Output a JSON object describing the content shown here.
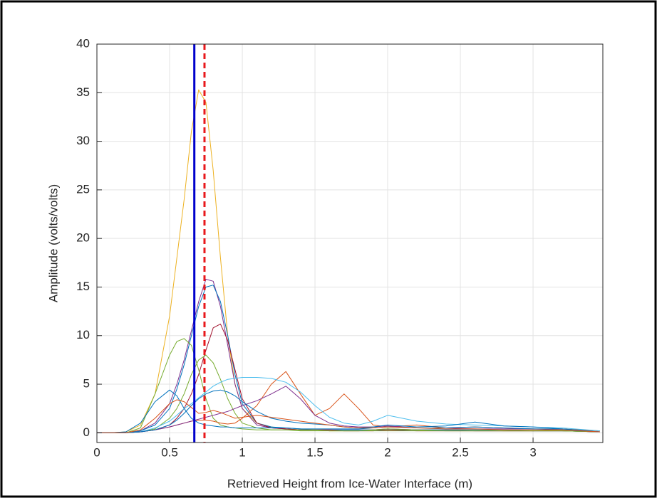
{
  "chart_data": {
    "type": "line",
    "xlabel": "Retrieved Height from Ice-Water Interface (m)",
    "ylabel": "Amplitude (volts/volts)",
    "xlim": [
      0,
      3.48
    ],
    "ylim": [
      -1,
      40
    ],
    "xticks": [
      0,
      0.5,
      1,
      1.5,
      2,
      2.5,
      3
    ],
    "yticks": [
      0,
      5,
      10,
      15,
      20,
      25,
      30,
      35,
      40
    ],
    "grid": true,
    "x": [
      0,
      0.1,
      0.2,
      0.3,
      0.4,
      0.5,
      0.55,
      0.6,
      0.65,
      0.7,
      0.75,
      0.8,
      0.85,
      0.9,
      0.95,
      1.0,
      1.1,
      1.2,
      1.3,
      1.4,
      1.5,
      1.6,
      1.7,
      1.8,
      1.9,
      2.0,
      2.2,
      2.4,
      2.6,
      2.8,
      3.0,
      3.2,
      3.46
    ],
    "series": [
      {
        "color": "#EDB120",
        "values": [
          0,
          0,
          0.1,
          0.8,
          4,
          12,
          18,
          24,
          31,
          35.3,
          34,
          27,
          18,
          10,
          5,
          2.5,
          1,
          0.6,
          0.4,
          0.3,
          0.3,
          0.2,
          0.2,
          0.2,
          0.3,
          0.4,
          0.3,
          0.3,
          0.3,
          0.2,
          0.2,
          0.3,
          0.1
        ]
      },
      {
        "color": "#7E2F8E",
        "values": [
          0,
          0,
          0,
          0.2,
          1,
          3,
          5,
          7.5,
          10.5,
          13.5,
          15.8,
          15.6,
          13,
          9,
          5,
          2.5,
          0.8,
          0.5,
          0.4,
          0.3,
          0.3,
          0.3,
          0.3,
          0.3,
          0.3,
          0.4,
          0.3,
          0.3,
          0.2,
          0.2,
          0.2,
          0.2,
          0.1
        ]
      },
      {
        "color": "#0072BD",
        "values": [
          0,
          0,
          0,
          0.2,
          0.8,
          2.5,
          4.5,
          7,
          10,
          13,
          15,
          15.2,
          13.5,
          10,
          6,
          3,
          1,
          0.6,
          0.5,
          0.4,
          0.3,
          0.3,
          0.3,
          0.3,
          0.3,
          0.3,
          0.3,
          0.3,
          0.3,
          0.3,
          0.2,
          0.2,
          0.1
        ]
      },
      {
        "color": "#A2142F",
        "values": [
          0,
          0,
          0,
          0.1,
          0.3,
          0.8,
          1.5,
          2.5,
          4,
          6,
          8.5,
          10.8,
          11.2,
          9.5,
          6.5,
          3.5,
          1,
          0.5,
          0.4,
          0.3,
          0.3,
          0.3,
          0.2,
          0.2,
          0.2,
          0.3,
          0.2,
          0.2,
          0.2,
          0.2,
          0.2,
          0.2,
          0.1
        ]
      },
      {
        "color": "#77AC30",
        "values": [
          0,
          0,
          0,
          0.5,
          4,
          8,
          9.4,
          9.7,
          9,
          6.5,
          3.5,
          1.5,
          0.8,
          0.6,
          0.5,
          0.4,
          0.3,
          0.3,
          0.3,
          0.3,
          0.3,
          0.2,
          0.2,
          0.2,
          0.3,
          0.4,
          0.3,
          0.2,
          0.2,
          0.2,
          0.2,
          0.2,
          0.1
        ]
      },
      {
        "color": "#77AC30",
        "values": [
          0,
          0,
          0,
          0.1,
          0.4,
          1.5,
          2.5,
          4,
          6,
          7.5,
          8,
          7.2,
          5.5,
          3.5,
          2,
          1,
          0.5,
          0.3,
          0.3,
          0.2,
          0.2,
          0.2,
          0.2,
          0.2,
          0.2,
          0.2,
          0.2,
          0.2,
          0.2,
          0.2,
          0.2,
          0.2,
          0.1
        ]
      },
      {
        "color": "#D95319",
        "values": [
          0,
          0,
          0,
          0.1,
          0.3,
          0.6,
          0.8,
          1,
          1.2,
          1.3,
          1.3,
          1.2,
          1,
          0.9,
          1,
          1.5,
          2.8,
          5,
          6.3,
          4,
          1.8,
          2.5,
          4,
          2.5,
          0.8,
          0.6,
          0.8,
          0.5,
          0.6,
          0.5,
          0.4,
          0.4,
          0.2
        ]
      },
      {
        "color": "#4DBEEE",
        "values": [
          0,
          0,
          0,
          0.1,
          0.5,
          1.2,
          1.8,
          2.5,
          3,
          3.6,
          4.2,
          4.8,
          5.2,
          5.5,
          5.6,
          5.7,
          5.7,
          5.6,
          5.2,
          4.2,
          2.8,
          1.6,
          1,
          0.8,
          1.2,
          1.8,
          1.2,
          0.9,
          0.8,
          0.7,
          0.6,
          0.5,
          0.2
        ]
      },
      {
        "color": "#7E2F8E",
        "values": [
          0,
          0,
          0,
          0.1,
          0.3,
          0.6,
          0.8,
          1,
          1.2,
          1.4,
          1.6,
          1.8,
          2,
          2.2,
          2.5,
          2.8,
          3.3,
          4,
          4.8,
          3.5,
          1.8,
          1,
          0.7,
          0.6,
          0.6,
          0.7,
          0.5,
          0.5,
          0.4,
          0.4,
          0.4,
          0.3,
          0.1
        ]
      },
      {
        "color": "#0072BD",
        "values": [
          0,
          0,
          0.1,
          1,
          3.2,
          4.4,
          3.8,
          2.5,
          1.5,
          1,
          0.8,
          0.7,
          0.6,
          0.6,
          0.5,
          0.5,
          0.5,
          0.5,
          0.5,
          0.4,
          0.4,
          0.4,
          0.4,
          0.4,
          0.5,
          0.6,
          0.5,
          0.5,
          0.6,
          0.5,
          0.4,
          0.4,
          0.1
        ]
      },
      {
        "color": "#0072BD",
        "values": [
          0,
          0,
          0,
          0.1,
          0.3,
          0.8,
          1.3,
          2,
          2.8,
          3.5,
          4,
          4.3,
          4.4,
          4.2,
          3.8,
          3.2,
          2.2,
          1.5,
          1.2,
          1,
          0.9,
          0.8,
          0.6,
          0.5,
          0.6,
          0.8,
          0.6,
          0.7,
          1.1,
          0.7,
          0.6,
          0.4,
          0.1
        ]
      },
      {
        "color": "#D95319",
        "values": [
          0,
          0,
          0,
          0.3,
          1.5,
          3,
          3.4,
          3.2,
          2.6,
          2,
          2.1,
          2.3,
          2.1,
          1.8,
          1.5,
          1.6,
          1.8,
          1.6,
          1.4,
          1.2,
          1,
          0.8,
          0.6,
          0.5,
          0.5,
          0.6,
          0.5,
          0.4,
          0.4,
          0.3,
          0.3,
          0.3,
          0.1
        ]
      }
    ],
    "reference_lines": [
      {
        "x": 0.67,
        "color": "#0000CC",
        "style": "solid"
      },
      {
        "x": 0.74,
        "color": "#E8181B",
        "style": "dashed"
      }
    ]
  }
}
